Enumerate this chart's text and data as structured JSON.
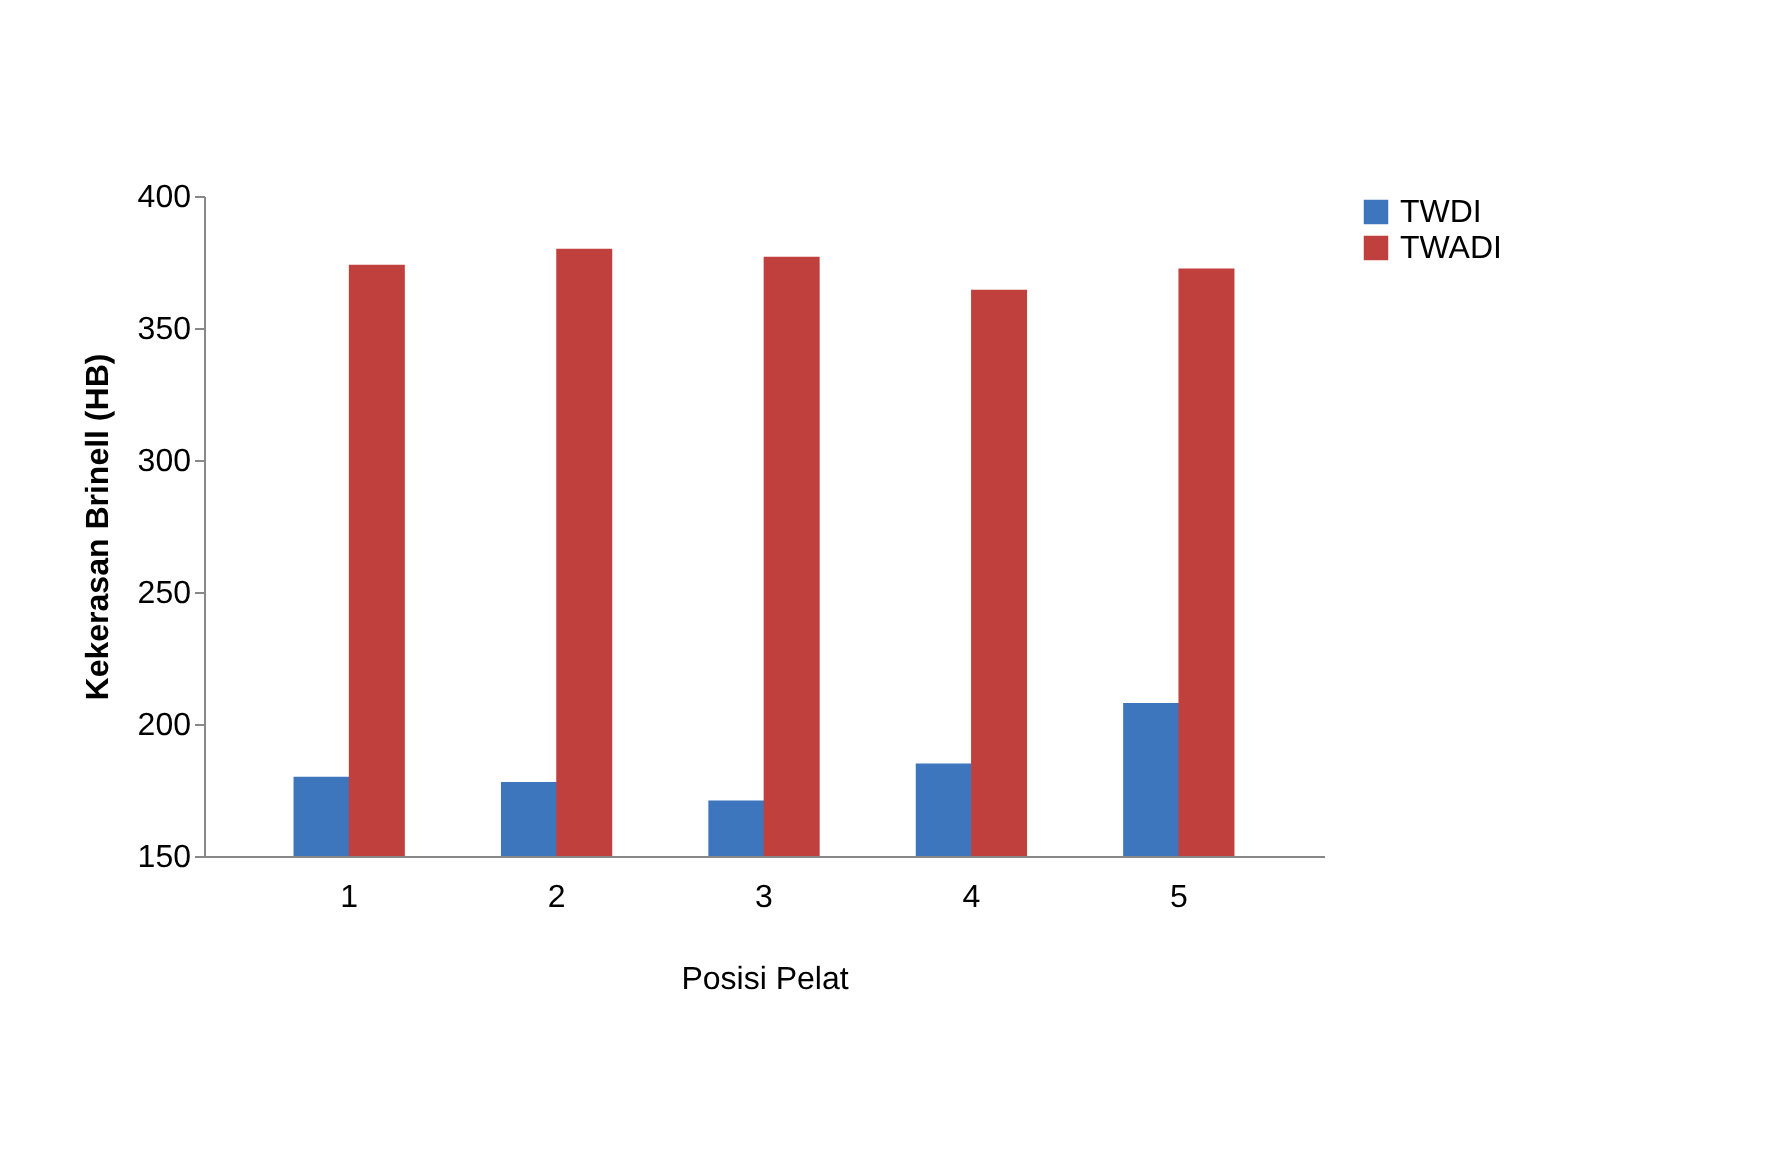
{
  "chart_data": {
    "type": "bar",
    "xlabel": "Posisi Pelat",
    "ylabel": "Kekerasan Brinell (HB)",
    "categories": [
      "1",
      "2",
      "3",
      "4",
      "5"
    ],
    "series": [
      {
        "name": "TWDI",
        "color": "#3d76bd",
        "values": [
          180,
          178,
          171,
          185,
          208
        ]
      },
      {
        "name": "TWADI",
        "color": "#c0403d",
        "values": [
          374,
          380,
          377,
          364.5,
          372.5
        ]
      }
    ],
    "ylim": [
      150,
      400
    ],
    "yticks": [
      150,
      200,
      250,
      300,
      350,
      400
    ],
    "grid": false,
    "legend": "right"
  }
}
